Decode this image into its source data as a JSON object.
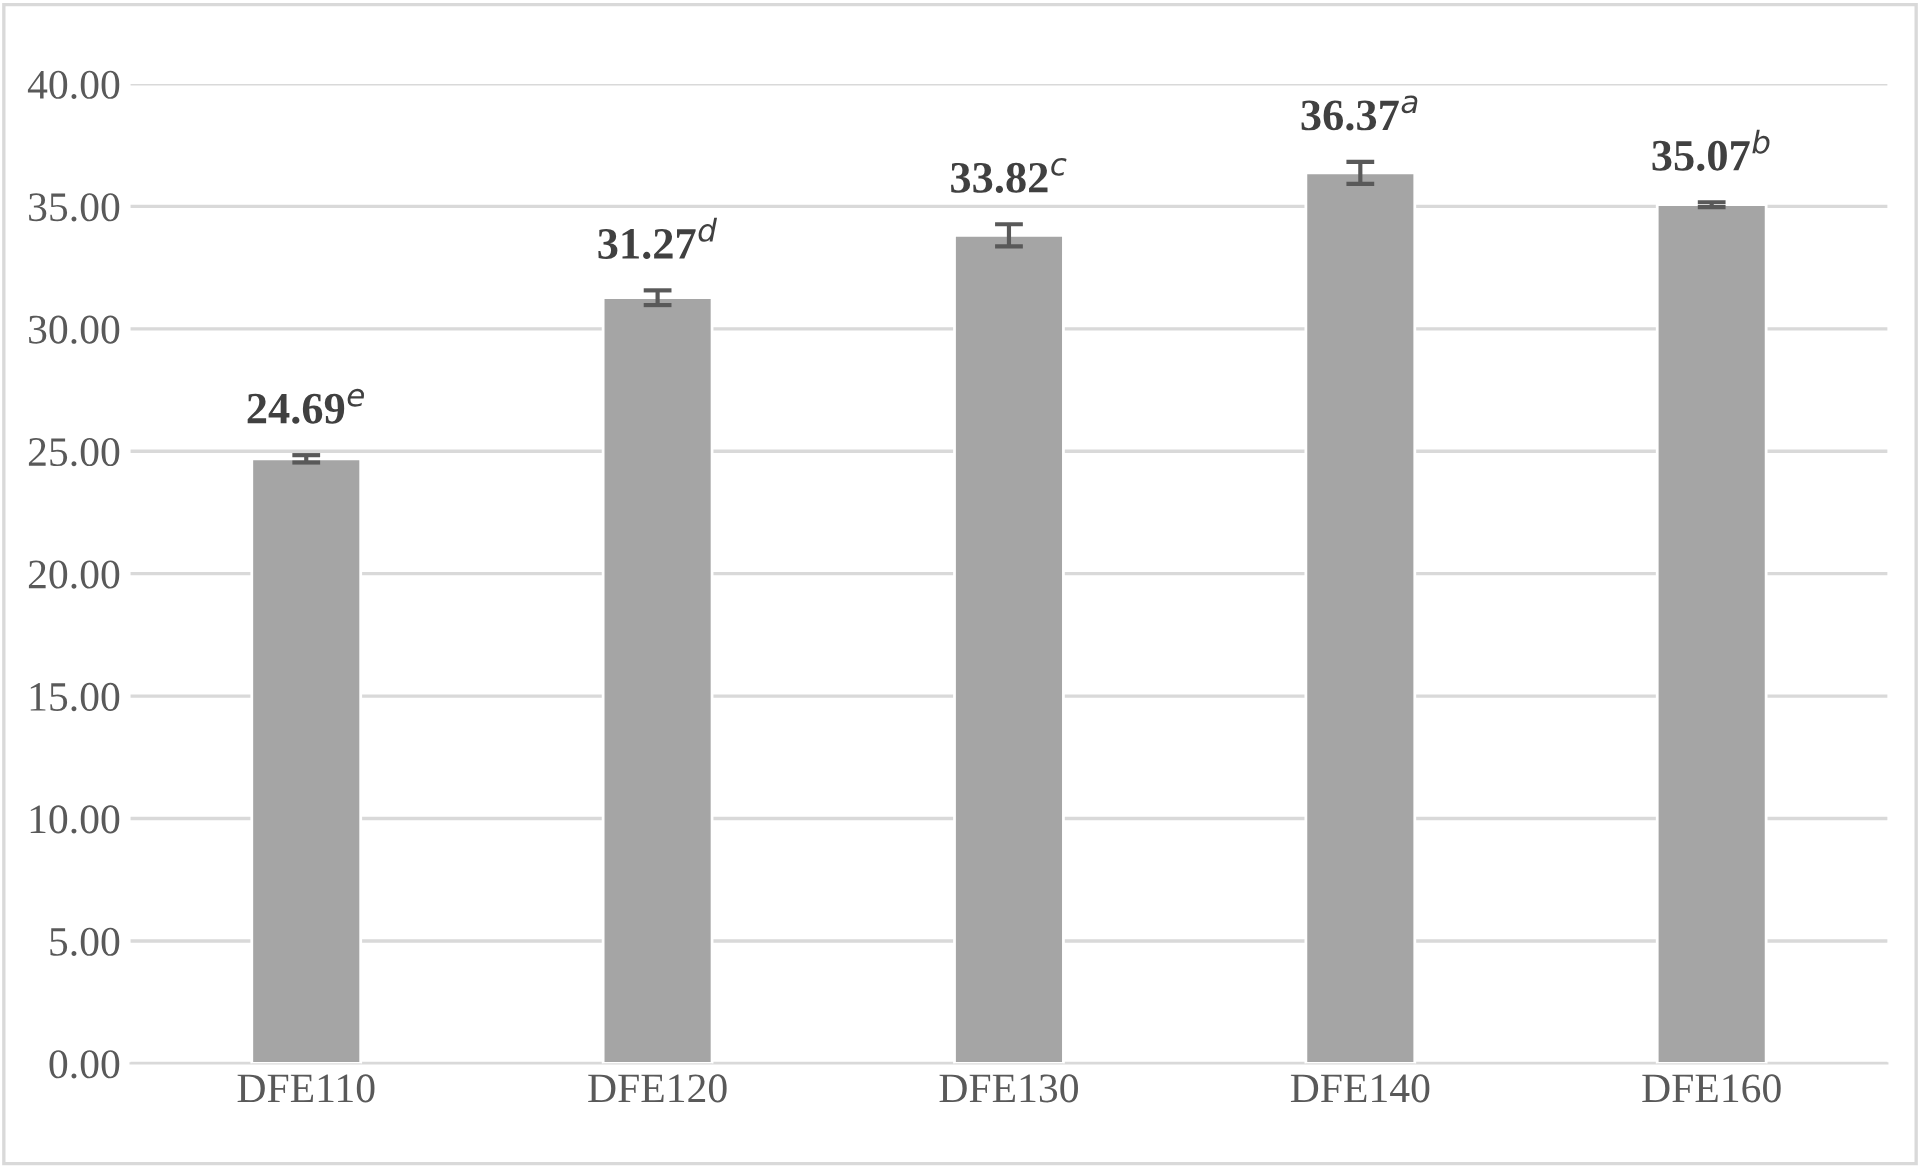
{
  "chart_data": {
    "type": "bar",
    "categories": [
      "DFE110",
      "DFE120",
      "DFE130",
      "DFE140",
      "DFE160"
    ],
    "values": [
      24.69,
      31.27,
      33.82,
      36.37,
      35.07
    ],
    "errors": [
      0.15,
      0.3,
      0.45,
      0.45,
      0.1
    ],
    "value_labels": [
      "24.69$^{e}$",
      "31.27$^{d}$",
      "33.82$^{c}$",
      "36.37$^{a}$",
      "35.07$^{b}$"
    ],
    "color": "#a5a5a5",
    "ylim": [
      0,
      40
    ],
    "yticks": [
      {
        "value": 0,
        "label": "0.00"
      },
      {
        "value": 5,
        "label": "5.00"
      },
      {
        "value": 10,
        "label": "10.00"
      },
      {
        "value": 15,
        "label": "15.00"
      },
      {
        "value": 20,
        "label": "20.00"
      },
      {
        "value": 25,
        "label": "25.00"
      },
      {
        "value": 30,
        "label": "30.00"
      },
      {
        "value": 35,
        "label": "35.00"
      },
      {
        "value": 40,
        "label": "40.00"
      }
    ],
    "grid": "y"
  }
}
